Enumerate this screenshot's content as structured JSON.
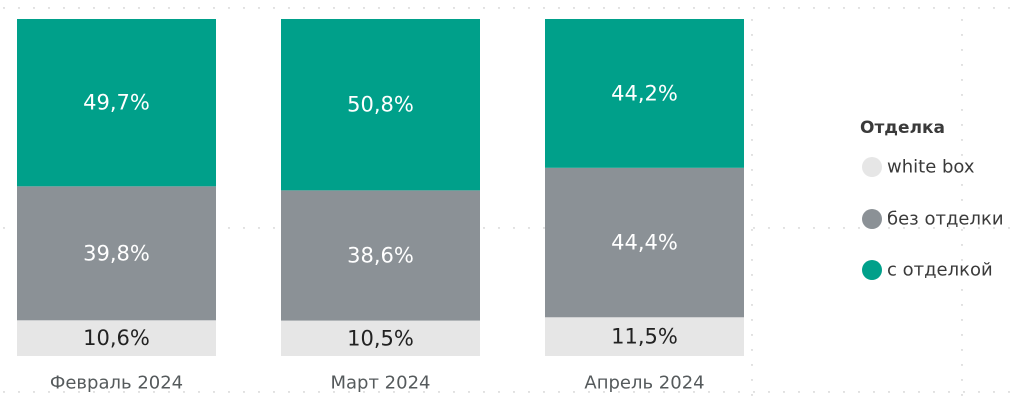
{
  "chart_data": {
    "type": "bar",
    "stacked": true,
    "normalized_percent": true,
    "categories": [
      "Февраль 2024",
      "Март 2024",
      "Апрель 2024"
    ],
    "series": [
      {
        "name": "white box",
        "color": "#e6e6e6",
        "label_color": "#222222",
        "values": [
          10.6,
          10.5,
          11.5
        ],
        "labels": [
          "10,6%",
          "10,5%",
          "11,5%"
        ]
      },
      {
        "name": "без отделки",
        "color": "#8b9196",
        "label_color": "#ffffff",
        "values": [
          39.8,
          38.6,
          44.4
        ],
        "labels": [
          "39,8%",
          "38,6%",
          "44,4%"
        ]
      },
      {
        "name": "с отделкой",
        "color": "#00a08a",
        "label_color": "#ffffff",
        "values": [
          49.7,
          50.8,
          44.2
        ],
        "labels": [
          "49,7%",
          "50,8%",
          "44,2%"
        ]
      }
    ],
    "legend": {
      "title": "Отделка",
      "position": "right"
    },
    "title": "",
    "xlabel": "",
    "ylabel": "",
    "ylim": [
      0,
      100
    ],
    "grid": false
  }
}
